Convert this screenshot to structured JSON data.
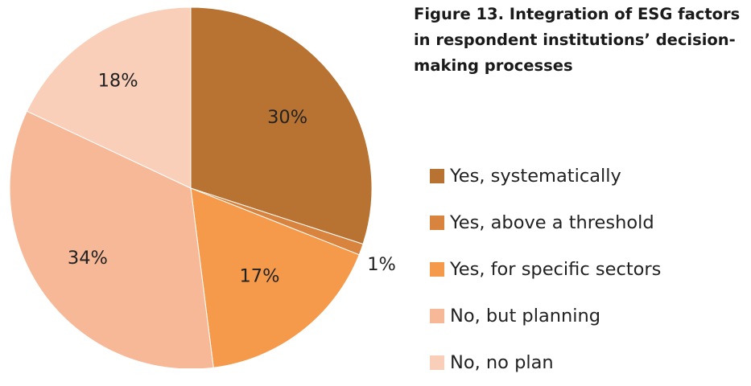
{
  "chart_data": {
    "type": "pie",
    "title": "Figure 13.  Integration of ESG factors in respondent institutions’ decision-making processes",
    "slices": [
      {
        "label": "Yes, systematically",
        "value": 30,
        "display": "30%",
        "color": "#B87333"
      },
      {
        "label": "Yes, above a threshold",
        "value": 1,
        "display": "1%",
        "color": "#D8843F"
      },
      {
        "label": "Yes, for specific sectors",
        "value": 17,
        "display": "17%",
        "color": "#F59A4A"
      },
      {
        "label": "No, but planning",
        "value": 34,
        "display": "34%",
        "color": "#F6B896"
      },
      {
        "label": "No, no plan",
        "value": 18,
        "display": "18%",
        "color": "#F9CFBA"
      }
    ],
    "legend_position": "right"
  }
}
